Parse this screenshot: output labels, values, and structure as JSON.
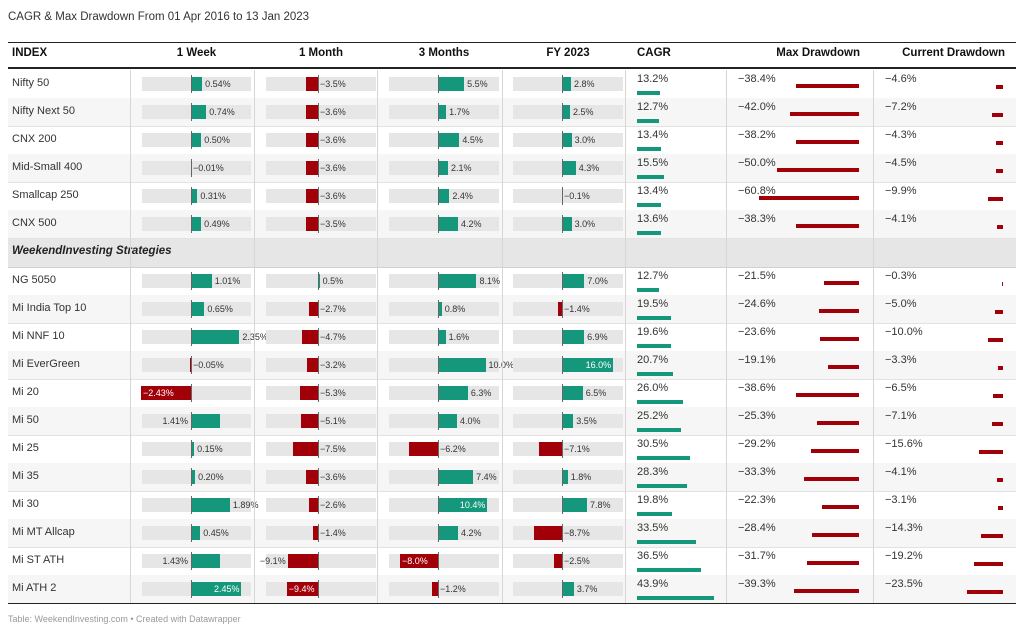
{
  "title": "CAGR & Max Drawdown From 01 Apr 2016 to 13 Jan 2023",
  "footer": "Table: WeekendInvesting.com • Created with Datawrapper",
  "colors": {
    "positive": "#14977a",
    "negative": "#a10008",
    "track": "#e6e6e6"
  },
  "chart_data": {
    "type": "table",
    "columns": [
      "INDEX",
      "1 Week",
      "1 Month",
      "3 Months",
      "FY 2023",
      "CAGR",
      "Max Drawdown",
      "Current Drawdown"
    ],
    "section_label": "WeekendInvesting Strategies",
    "indices": [
      {
        "name": "Nifty 50",
        "w1": 0.54,
        "w1_label": "0.54%",
        "m1": -3.5,
        "m1_label": "−3.5%",
        "m3": 5.5,
        "m3_label": "5.5%",
        "fy": 2.8,
        "fy_label": "2.8%",
        "cagr": 13.2,
        "cagr_label": "13.2%",
        "mdd": -38.4,
        "mdd_label": "−38.4%",
        "cdd": -4.6,
        "cdd_label": "−4.6%"
      },
      {
        "name": "Nifty Next 50",
        "w1": 0.74,
        "w1_label": "0.74%",
        "m1": -3.6,
        "m1_label": "−3.6%",
        "m3": 1.7,
        "m3_label": "1.7%",
        "fy": 2.5,
        "fy_label": "2.5%",
        "cagr": 12.7,
        "cagr_label": "12.7%",
        "mdd": -42.0,
        "mdd_label": "−42.0%",
        "cdd": -7.2,
        "cdd_label": "−7.2%"
      },
      {
        "name": "CNX 200",
        "w1": 0.5,
        "w1_label": "0.50%",
        "m1": -3.6,
        "m1_label": "−3.6%",
        "m3": 4.5,
        "m3_label": "4.5%",
        "fy": 3.0,
        "fy_label": "3.0%",
        "cagr": 13.4,
        "cagr_label": "13.4%",
        "mdd": -38.2,
        "mdd_label": "−38.2%",
        "cdd": -4.3,
        "cdd_label": "−4.3%"
      },
      {
        "name": "Mid-Small 400",
        "w1": -0.01,
        "w1_label": "−0.01%",
        "m1": -3.6,
        "m1_label": "−3.6%",
        "m3": 2.1,
        "m3_label": "2.1%",
        "fy": 4.3,
        "fy_label": "4.3%",
        "cagr": 15.5,
        "cagr_label": "15.5%",
        "mdd": -50.0,
        "mdd_label": "−50.0%",
        "cdd": -4.5,
        "cdd_label": "−4.5%"
      },
      {
        "name": "Smallcap 250",
        "w1": 0.31,
        "w1_label": "0.31%",
        "m1": -3.6,
        "m1_label": "−3.6%",
        "m3": 2.4,
        "m3_label": "2.4%",
        "fy": -0.1,
        "fy_label": "−0.1%",
        "cagr": 13.4,
        "cagr_label": "13.4%",
        "mdd": -60.8,
        "mdd_label": "−60.8%",
        "cdd": -9.9,
        "cdd_label": "−9.9%"
      },
      {
        "name": "CNX 500",
        "w1": 0.49,
        "w1_label": "0.49%",
        "m1": -3.5,
        "m1_label": "−3.5%",
        "m3": 4.2,
        "m3_label": "4.2%",
        "fy": 3.0,
        "fy_label": "3.0%",
        "cagr": 13.6,
        "cagr_label": "13.6%",
        "mdd": -38.3,
        "mdd_label": "−38.3%",
        "cdd": -4.1,
        "cdd_label": "−4.1%"
      }
    ],
    "strategies": [
      {
        "name": "NG 5050",
        "w1": 1.01,
        "w1_label": "1.01%",
        "m1": 0.5,
        "m1_label": "0.5%",
        "m3": 8.1,
        "m3_label": "8.1%",
        "fy": 7.0,
        "fy_label": "7.0%",
        "cagr": 12.7,
        "cagr_label": "12.7%",
        "mdd": -21.5,
        "mdd_label": "−21.5%",
        "cdd": -0.3,
        "cdd_label": "−0.3%"
      },
      {
        "name": "Mi India Top 10",
        "w1": 0.65,
        "w1_label": "0.65%",
        "m1": -2.7,
        "m1_label": "−2.7%",
        "m3": 0.8,
        "m3_label": "0.8%",
        "fy": -1.4,
        "fy_label": "−1.4%",
        "cagr": 19.5,
        "cagr_label": "19.5%",
        "mdd": -24.6,
        "mdd_label": "−24.6%",
        "cdd": -5.0,
        "cdd_label": "−5.0%"
      },
      {
        "name": "Mi NNF 10",
        "w1": 2.35,
        "w1_label": "2.35%",
        "m1": -4.7,
        "m1_label": "−4.7%",
        "m3": 1.6,
        "m3_label": "1.6%",
        "fy": 6.9,
        "fy_label": "6.9%",
        "cagr": 19.6,
        "cagr_label": "19.6%",
        "mdd": -23.6,
        "mdd_label": "−23.6%",
        "cdd": -10.0,
        "cdd_label": "−10.0%"
      },
      {
        "name": "Mi EverGreen",
        "w1": -0.05,
        "w1_label": "−0.05%",
        "m1": -3.2,
        "m1_label": "−3.2%",
        "m3": 10.0,
        "m3_label": "10.0%",
        "fy": 16.0,
        "fy_label": "16.0%",
        "cagr": 20.7,
        "cagr_label": "20.7%",
        "mdd": -19.1,
        "mdd_label": "−19.1%",
        "cdd": -3.3,
        "cdd_label": "−3.3%"
      },
      {
        "name": "Mi 20",
        "w1": -2.43,
        "w1_label": "−2.43%",
        "m1": -5.3,
        "m1_label": "−5.3%",
        "m3": 6.3,
        "m3_label": "6.3%",
        "fy": 6.5,
        "fy_label": "6.5%",
        "cagr": 26.0,
        "cagr_label": "26.0%",
        "mdd": -38.6,
        "mdd_label": "−38.6%",
        "cdd": -6.5,
        "cdd_label": "−6.5%"
      },
      {
        "name": "Mi 50",
        "w1": 1.41,
        "w1_label": "1.41%",
        "m1": -5.1,
        "m1_label": "−5.1%",
        "m3": 4.0,
        "m3_label": "4.0%",
        "fy": 3.5,
        "fy_label": "3.5%",
        "cagr": 25.2,
        "cagr_label": "25.2%",
        "mdd": -25.3,
        "mdd_label": "−25.3%",
        "cdd": -7.1,
        "cdd_label": "−7.1%"
      },
      {
        "name": "Mi 25",
        "w1": 0.15,
        "w1_label": "0.15%",
        "m1": -7.5,
        "m1_label": "−7.5%",
        "m3": -6.2,
        "m3_label": "−6.2%",
        "fy": -7.1,
        "fy_label": "−7.1%",
        "cagr": 30.5,
        "cagr_label": "30.5%",
        "mdd": -29.2,
        "mdd_label": "−29.2%",
        "cdd": -15.6,
        "cdd_label": "−15.6%"
      },
      {
        "name": "Mi 35",
        "w1": 0.2,
        "w1_label": "0.20%",
        "m1": -3.6,
        "m1_label": "−3.6%",
        "m3": 7.4,
        "m3_label": "7.4%",
        "fy": 1.8,
        "fy_label": "1.8%",
        "cagr": 28.3,
        "cagr_label": "28.3%",
        "mdd": -33.3,
        "mdd_label": "−33.3%",
        "cdd": -4.1,
        "cdd_label": "−4.1%"
      },
      {
        "name": "Mi 30",
        "w1": 1.89,
        "w1_label": "1.89%",
        "m1": -2.6,
        "m1_label": "−2.6%",
        "m3": 10.4,
        "m3_label": "10.4%",
        "fy": 7.8,
        "fy_label": "7.8%",
        "cagr": 19.8,
        "cagr_label": "19.8%",
        "mdd": -22.3,
        "mdd_label": "−22.3%",
        "cdd": -3.1,
        "cdd_label": "−3.1%"
      },
      {
        "name": "Mi MT Allcap",
        "w1": 0.45,
        "w1_label": "0.45%",
        "m1": -1.4,
        "m1_label": "−1.4%",
        "m3": 4.2,
        "m3_label": "4.2%",
        "fy": -8.7,
        "fy_label": "−8.7%",
        "cagr": 33.5,
        "cagr_label": "33.5%",
        "mdd": -28.4,
        "mdd_label": "−28.4%",
        "cdd": -14.3,
        "cdd_label": "−14.3%"
      },
      {
        "name": "Mi ST ATH",
        "w1": 1.43,
        "w1_label": "1.43%",
        "m1": -9.1,
        "m1_label": "−9.1%",
        "m3": -8.0,
        "m3_label": "−8.0%",
        "fy": -2.5,
        "fy_label": "−2.5%",
        "cagr": 36.5,
        "cagr_label": "36.5%",
        "mdd": -31.7,
        "mdd_label": "−31.7%",
        "cdd": -19.2,
        "cdd_label": "−19.2%"
      },
      {
        "name": "Mi ATH 2",
        "w1": 2.45,
        "w1_label": "2.45%",
        "m1": -9.4,
        "m1_label": "−9.4%",
        "m3": -1.2,
        "m3_label": "−1.2%",
        "fy": 3.7,
        "fy_label": "3.7%",
        "cagr": 43.9,
        "cagr_label": "43.9%",
        "mdd": -39.3,
        "mdd_label": "−39.3%",
        "cdd": -23.5,
        "cdd_label": "−23.5%"
      }
    ]
  }
}
